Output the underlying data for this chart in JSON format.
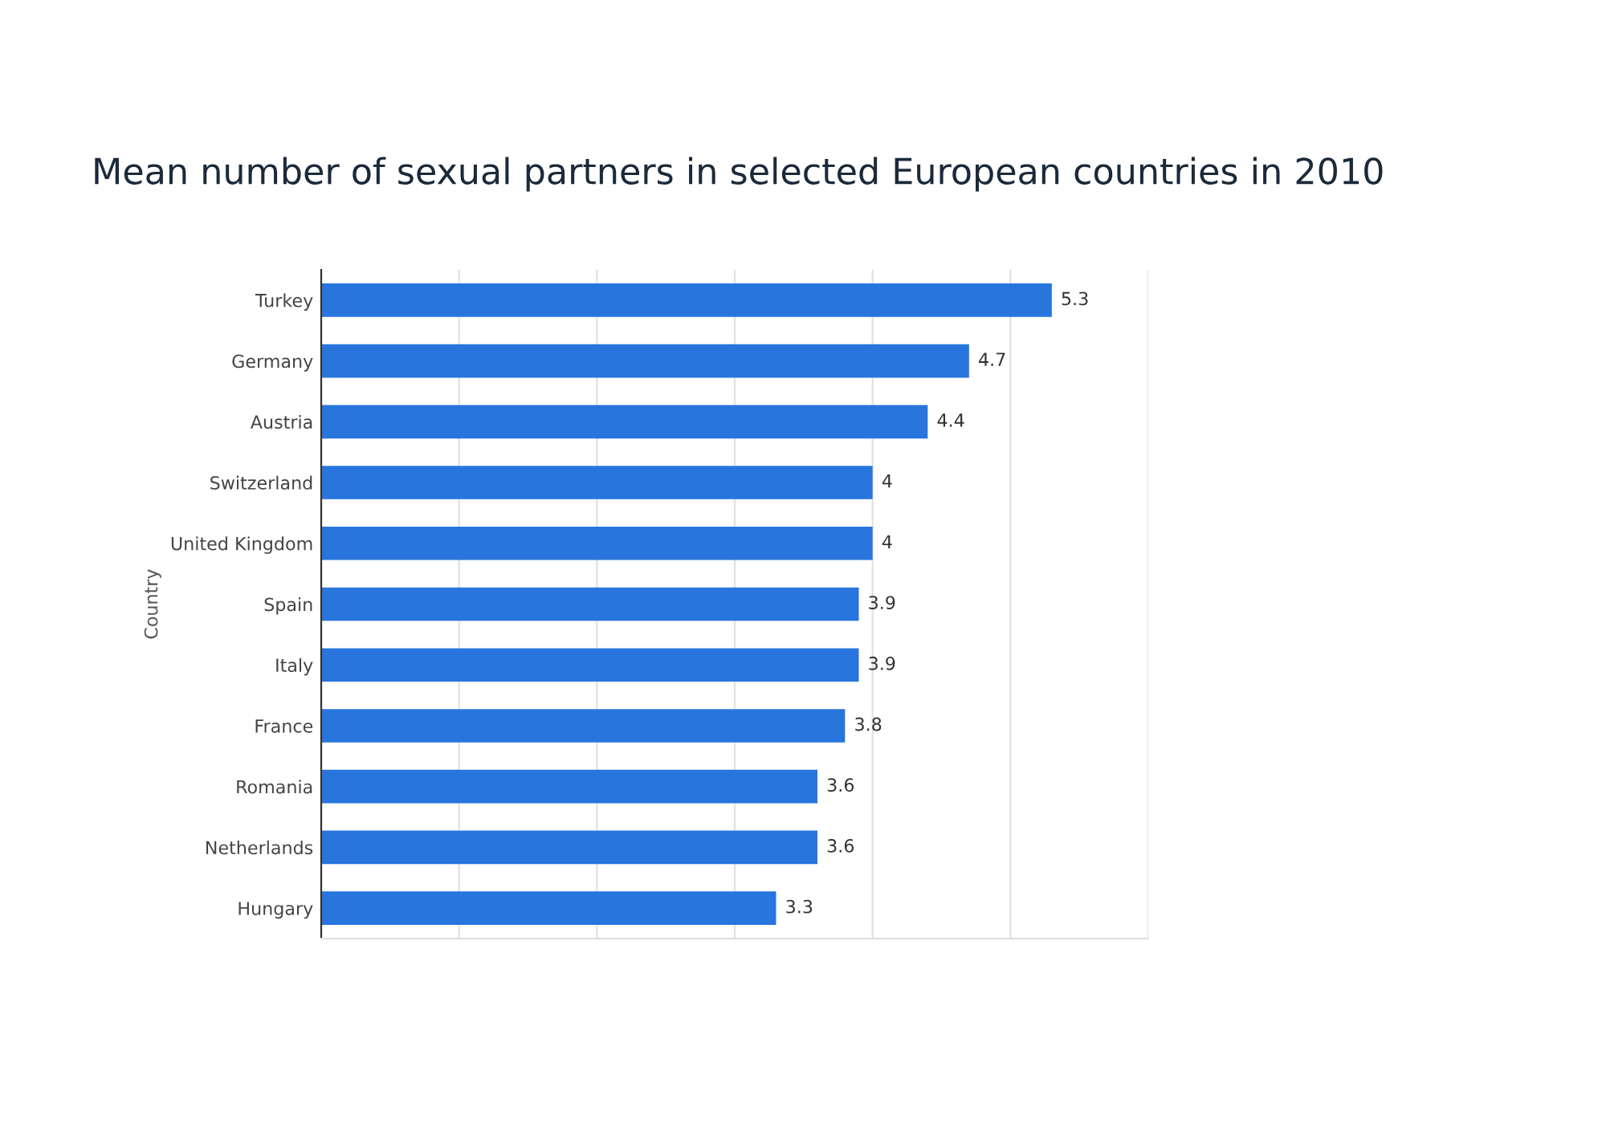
{
  "chart_data": {
    "type": "bar",
    "orientation": "horizontal",
    "title": "Mean number of sexual partners in selected European countries in 2010",
    "ylabel": "Country",
    "categories": [
      "Turkey",
      "Germany",
      "Austria",
      "Switzerland",
      "United Kingdom",
      "Spain",
      "Italy",
      "France",
      "Romania",
      "Netherlands",
      "Hungary"
    ],
    "values": [
      5.3,
      4.7,
      4.4,
      4,
      4,
      3.9,
      3.9,
      3.8,
      3.6,
      3.6,
      3.3
    ],
    "color": "#2876dd",
    "data_labels": true,
    "xlim": [
      0,
      6
    ],
    "xticks": [
      {
        "value": 0,
        "label": null
      },
      {
        "value": 1,
        "label": null
      },
      {
        "value": 2,
        "label": null
      },
      {
        "value": 3,
        "label": null
      },
      {
        "value": 4,
        "label": null
      },
      {
        "value": 5,
        "label": null
      },
      {
        "value": 6,
        "label": null
      }
    ],
    "grid": "x",
    "tick_labels": "y",
    "legend": false
  }
}
